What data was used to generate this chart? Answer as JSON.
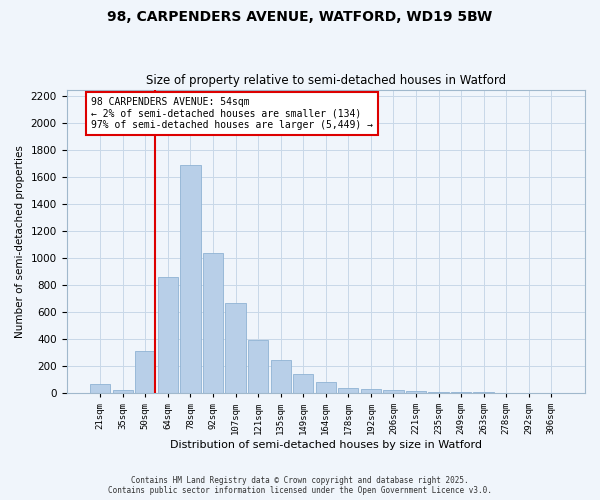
{
  "title": "98, CARPENDERS AVENUE, WATFORD, WD19 5BW",
  "subtitle": "Size of property relative to semi-detached houses in Watford",
  "xlabel": "Distribution of semi-detached houses by size in Watford",
  "ylabel": "Number of semi-detached properties",
  "bar_labels": [
    "21sqm",
    "35sqm",
    "50sqm",
    "64sqm",
    "78sqm",
    "92sqm",
    "107sqm",
    "121sqm",
    "135sqm",
    "149sqm",
    "164sqm",
    "178sqm",
    "192sqm",
    "206sqm",
    "221sqm",
    "235sqm",
    "249sqm",
    "263sqm",
    "278sqm",
    "292sqm",
    "306sqm"
  ],
  "bar_values": [
    70,
    20,
    310,
    860,
    1690,
    1040,
    670,
    395,
    245,
    140,
    80,
    40,
    30,
    25,
    15,
    10,
    5,
    5,
    3,
    2,
    1
  ],
  "bar_color": "#b8cfe8",
  "bar_edge_color": "#8fb3d4",
  "vline_color": "#dd0000",
  "annotation_title": "98 CARPENDERS AVENUE: 54sqm",
  "annotation_line2": "← 2% of semi-detached houses are smaller (134)",
  "annotation_line3": "97% of semi-detached houses are larger (5,449) →",
  "ylim": [
    0,
    2250
  ],
  "yticks": [
    0,
    200,
    400,
    600,
    800,
    1000,
    1200,
    1400,
    1600,
    1800,
    2000,
    2200
  ],
  "footer_line1": "Contains HM Land Registry data © Crown copyright and database right 2025.",
  "footer_line2": "Contains public sector information licensed under the Open Government Licence v3.0.",
  "bg_color": "#f0f5fb",
  "grid_color": "#c8d8e8"
}
